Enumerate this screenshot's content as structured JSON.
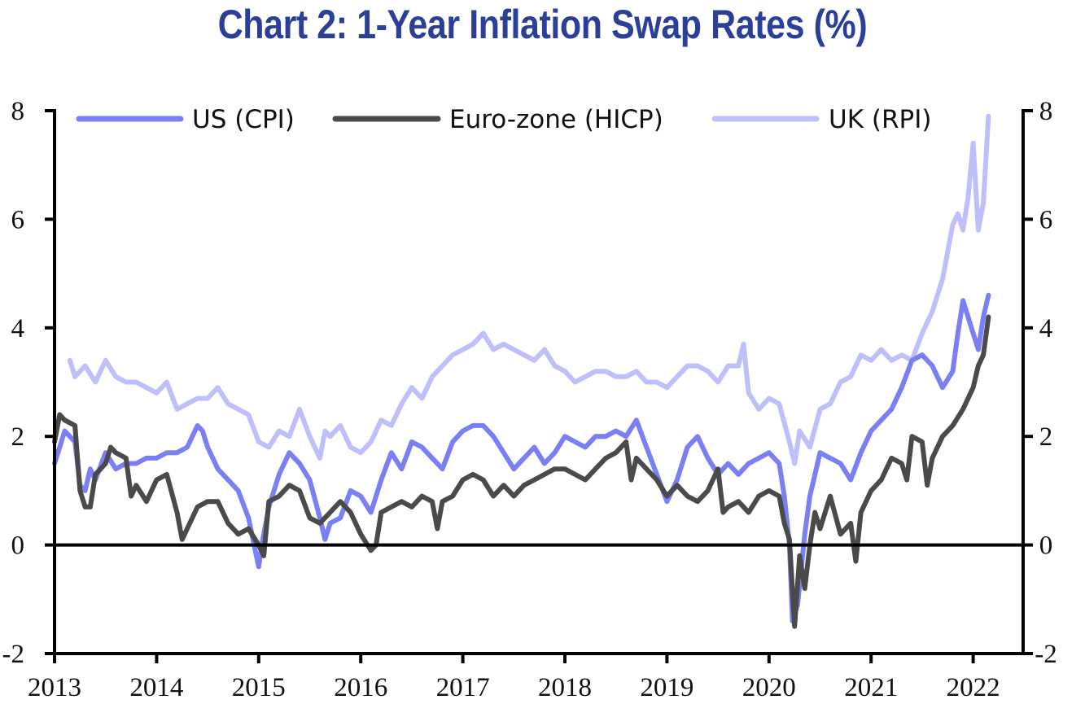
{
  "chart_data": {
    "type": "line",
    "title": "Chart 2: 1-Year Inflation Swap Rates (%)",
    "xlabel": "",
    "ylabel": "",
    "xlim": [
      2013,
      2022.55
    ],
    "ylim": [
      -2,
      8
    ],
    "y_ticks": [
      -2,
      0,
      2,
      4,
      6,
      8
    ],
    "x_ticks": [
      2013,
      2014,
      2015,
      2016,
      2017,
      2018,
      2019,
      2020,
      2021,
      2022
    ],
    "x_tick_labels": [
      "2013",
      "2014",
      "2015",
      "2016",
      "2017",
      "2018",
      "2019",
      "2020",
      "2021",
      "2022"
    ],
    "y_tick_labels": [
      "-2",
      "0",
      "2",
      "4",
      "6",
      "8"
    ],
    "dual_y_axis": true,
    "grid": false,
    "zero_line": true,
    "legend_position": "top",
    "series": [
      {
        "name": "US (CPI)",
        "color": "#7b7ff5",
        "x": [
          2013.0,
          2013.05,
          2013.1,
          2013.2,
          2013.25,
          2013.3,
          2013.35,
          2013.4,
          2013.5,
          2013.6,
          2013.7,
          2013.8,
          2013.9,
          2014.0,
          2014.1,
          2014.2,
          2014.3,
          2014.4,
          2014.45,
          2014.5,
          2014.6,
          2014.7,
          2014.8,
          2014.9,
          2015.0,
          2015.03,
          2015.1,
          2015.2,
          2015.3,
          2015.4,
          2015.5,
          2015.6,
          2015.65,
          2015.7,
          2015.8,
          2015.9,
          2016.0,
          2016.1,
          2016.2,
          2016.3,
          2016.4,
          2016.5,
          2016.6,
          2016.7,
          2016.8,
          2016.9,
          2017.0,
          2017.1,
          2017.2,
          2017.3,
          2017.4,
          2017.5,
          2017.6,
          2017.7,
          2017.8,
          2017.9,
          2018.0,
          2018.1,
          2018.2,
          2018.3,
          2018.4,
          2018.5,
          2018.6,
          2018.7,
          2018.8,
          2018.9,
          2019.0,
          2019.1,
          2019.2,
          2019.3,
          2019.4,
          2019.5,
          2019.6,
          2019.7,
          2019.8,
          2019.9,
          2020.0,
          2020.1,
          2020.15,
          2020.2,
          2020.23,
          2020.28,
          2020.35,
          2020.4,
          2020.5,
          2020.6,
          2020.7,
          2020.8,
          2020.9,
          2021.0,
          2021.1,
          2021.2,
          2021.3,
          2021.4,
          2021.5,
          2021.6,
          2021.7,
          2021.8,
          2021.85,
          2021.9,
          2022.0,
          2022.05,
          2022.1,
          2022.15
        ],
        "y": [
          1.5,
          1.8,
          2.1,
          1.9,
          1.1,
          1.0,
          1.4,
          1.2,
          1.7,
          1.4,
          1.5,
          1.5,
          1.6,
          1.6,
          1.7,
          1.7,
          1.8,
          2.2,
          2.1,
          1.8,
          1.4,
          1.2,
          1.0,
          0.5,
          -0.4,
          0.0,
          0.7,
          1.3,
          1.7,
          1.5,
          1.2,
          0.5,
          0.1,
          0.4,
          0.5,
          1.0,
          0.9,
          0.6,
          1.2,
          1.7,
          1.4,
          1.9,
          1.8,
          1.6,
          1.4,
          1.9,
          2.1,
          2.2,
          2.2,
          2.0,
          1.7,
          1.4,
          1.6,
          1.8,
          1.5,
          1.7,
          2.0,
          1.9,
          1.8,
          2.0,
          2.0,
          2.1,
          2.0,
          2.3,
          1.8,
          1.3,
          0.8,
          1.2,
          1.8,
          2.0,
          1.6,
          1.3,
          1.5,
          1.3,
          1.5,
          1.6,
          1.7,
          1.5,
          0.9,
          0.0,
          -1.4,
          -1.1,
          0.2,
          0.9,
          1.7,
          1.6,
          1.5,
          1.2,
          1.7,
          2.1,
          2.3,
          2.5,
          2.9,
          3.4,
          3.5,
          3.3,
          2.9,
          3.2,
          3.9,
          4.5,
          3.9,
          3.6,
          4.2,
          4.6
        ]
      },
      {
        "name": "Euro-zone (HICP)",
        "color": "#4a4a4a",
        "x": [
          2013.0,
          2013.05,
          2013.1,
          2013.2,
          2013.25,
          2013.3,
          2013.35,
          2013.4,
          2013.5,
          2013.55,
          2013.6,
          2013.7,
          2013.75,
          2013.8,
          2013.9,
          2014.0,
          2014.1,
          2014.2,
          2014.25,
          2014.3,
          2014.4,
          2014.5,
          2014.6,
          2014.7,
          2014.8,
          2014.9,
          2015.0,
          2015.05,
          2015.1,
          2015.2,
          2015.3,
          2015.4,
          2015.5,
          2015.6,
          2015.7,
          2015.8,
          2015.9,
          2016.0,
          2016.1,
          2016.15,
          2016.2,
          2016.3,
          2016.4,
          2016.5,
          2016.6,
          2016.7,
          2016.75,
          2016.8,
          2016.9,
          2017.0,
          2017.1,
          2017.2,
          2017.3,
          2017.4,
          2017.5,
          2017.6,
          2017.7,
          2017.8,
          2017.9,
          2018.0,
          2018.1,
          2018.2,
          2018.3,
          2018.4,
          2018.5,
          2018.6,
          2018.65,
          2018.7,
          2018.8,
          2018.9,
          2019.0,
          2019.1,
          2019.2,
          2019.3,
          2019.4,
          2019.5,
          2019.55,
          2019.6,
          2019.7,
          2019.8,
          2019.9,
          2020.0,
          2020.1,
          2020.15,
          2020.2,
          2020.25,
          2020.3,
          2020.35,
          2020.4,
          2020.45,
          2020.5,
          2020.6,
          2020.7,
          2020.8,
          2020.85,
          2020.9,
          2021.0,
          2021.1,
          2021.2,
          2021.3,
          2021.35,
          2021.4,
          2021.5,
          2021.55,
          2021.6,
          2021.7,
          2021.8,
          2021.9,
          2022.0,
          2022.05,
          2022.1,
          2022.15
        ],
        "y": [
          1.9,
          2.4,
          2.3,
          2.2,
          1.0,
          0.7,
          0.7,
          1.3,
          1.5,
          1.8,
          1.7,
          1.6,
          0.9,
          1.1,
          0.8,
          1.2,
          1.3,
          0.6,
          0.1,
          0.3,
          0.7,
          0.8,
          0.8,
          0.4,
          0.2,
          0.3,
          0.0,
          -0.2,
          0.8,
          0.9,
          1.1,
          1.0,
          0.5,
          0.4,
          0.6,
          0.8,
          0.6,
          0.2,
          -0.1,
          0.0,
          0.6,
          0.7,
          0.8,
          0.7,
          0.9,
          0.8,
          0.3,
          0.8,
          0.9,
          1.2,
          1.3,
          1.2,
          0.9,
          1.1,
          0.9,
          1.1,
          1.2,
          1.3,
          1.4,
          1.4,
          1.3,
          1.2,
          1.4,
          1.6,
          1.7,
          1.9,
          1.2,
          1.6,
          1.4,
          1.2,
          0.9,
          1.1,
          0.9,
          0.8,
          1.0,
          1.4,
          0.6,
          0.7,
          0.8,
          0.6,
          0.9,
          1.0,
          0.9,
          0.4,
          0.1,
          -1.5,
          -0.2,
          -0.8,
          0.0,
          0.6,
          0.3,
          0.9,
          0.2,
          0.4,
          -0.3,
          0.6,
          1.0,
          1.2,
          1.6,
          1.5,
          1.2,
          2.0,
          1.9,
          1.1,
          1.6,
          2.0,
          2.2,
          2.5,
          2.9,
          3.3,
          3.5,
          4.2
        ]
      },
      {
        "name": "UK (RPI)",
        "color": "#bfc0fb",
        "x": [
          2013.15,
          2013.2,
          2013.3,
          2013.4,
          2013.5,
          2013.6,
          2013.7,
          2013.8,
          2013.9,
          2014.0,
          2014.1,
          2014.2,
          2014.3,
          2014.4,
          2014.5,
          2014.6,
          2014.7,
          2014.8,
          2014.9,
          2015.0,
          2015.1,
          2015.2,
          2015.3,
          2015.4,
          2015.5,
          2015.6,
          2015.65,
          2015.7,
          2015.8,
          2015.9,
          2016.0,
          2016.1,
          2016.2,
          2016.3,
          2016.4,
          2016.5,
          2016.6,
          2016.7,
          2016.8,
          2016.9,
          2017.0,
          2017.1,
          2017.2,
          2017.3,
          2017.4,
          2017.5,
          2017.6,
          2017.7,
          2017.8,
          2017.9,
          2018.0,
          2018.1,
          2018.2,
          2018.3,
          2018.4,
          2018.5,
          2018.6,
          2018.7,
          2018.8,
          2018.9,
          2019.0,
          2019.1,
          2019.2,
          2019.3,
          2019.4,
          2019.5,
          2019.6,
          2019.7,
          2019.75,
          2019.8,
          2019.9,
          2020.0,
          2020.1,
          2020.2,
          2020.25,
          2020.3,
          2020.4,
          2020.5,
          2020.6,
          2020.7,
          2020.8,
          2020.9,
          2021.0,
          2021.1,
          2021.2,
          2021.3,
          2021.4,
          2021.5,
          2021.6,
          2021.7,
          2021.8,
          2021.85,
          2021.9,
          2021.95,
          2022.0,
          2022.05,
          2022.1,
          2022.15
        ],
        "y": [
          3.4,
          3.1,
          3.3,
          3.0,
          3.4,
          3.1,
          3.0,
          3.0,
          2.9,
          2.8,
          3.0,
          2.5,
          2.6,
          2.7,
          2.7,
          2.9,
          2.6,
          2.5,
          2.4,
          1.9,
          1.8,
          2.1,
          2.0,
          2.5,
          2.0,
          1.6,
          2.1,
          2.0,
          2.2,
          1.8,
          1.7,
          1.9,
          2.3,
          2.2,
          2.6,
          2.9,
          2.7,
          3.1,
          3.3,
          3.5,
          3.6,
          3.7,
          3.9,
          3.6,
          3.7,
          3.6,
          3.5,
          3.4,
          3.6,
          3.3,
          3.2,
          3.0,
          3.1,
          3.2,
          3.2,
          3.1,
          3.1,
          3.2,
          3.0,
          3.0,
          2.9,
          3.1,
          3.3,
          3.3,
          3.2,
          3.0,
          3.3,
          3.3,
          3.7,
          2.8,
          2.5,
          2.7,
          2.6,
          1.9,
          1.5,
          2.1,
          1.8,
          2.5,
          2.6,
          3.0,
          3.1,
          3.5,
          3.4,
          3.6,
          3.4,
          3.5,
          3.4,
          3.9,
          4.3,
          4.9,
          5.9,
          6.1,
          5.8,
          6.4,
          7.4,
          5.8,
          6.3,
          7.9
        ]
      }
    ],
    "legend": [
      {
        "label": "US (CPI)",
        "color": "#7b7ff5"
      },
      {
        "label": "Euro-zone (HICP)",
        "color": "#4a4a4a"
      },
      {
        "label": "UK (RPI)",
        "color": "#bfc0fb"
      }
    ]
  },
  "title_color": "#2b3f98"
}
